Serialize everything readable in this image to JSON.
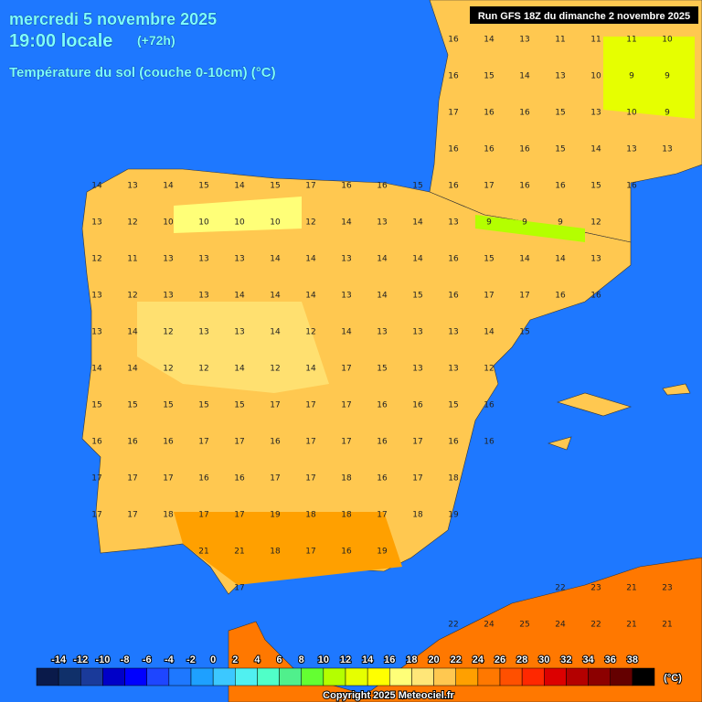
{
  "header": {
    "date": "mercredi 5 novembre 2025",
    "time": "19:00 locale",
    "lead": "(+72h)",
    "variable": "Température du sol (couche 0-10cm) (°C)",
    "run": "Run GFS 18Z du dimanche 2 novembre 2025"
  },
  "grid": {
    "rows": [
      [
        null,
        null,
        null,
        null,
        null,
        null,
        null,
        null,
        null,
        null,
        null,
        null,
        16,
        14,
        13,
        11,
        11,
        11,
        10
      ],
      [
        null,
        null,
        null,
        null,
        null,
        null,
        null,
        null,
        null,
        null,
        null,
        null,
        16,
        15,
        14,
        13,
        10,
        9,
        9
      ],
      [
        null,
        null,
        null,
        null,
        null,
        null,
        null,
        null,
        null,
        null,
        null,
        null,
        17,
        16,
        16,
        15,
        13,
        10,
        9
      ],
      [
        null,
        null,
        null,
        null,
        null,
        null,
        null,
        null,
        null,
        null,
        null,
        null,
        16,
        16,
        16,
        15,
        14,
        13,
        13
      ],
      [
        null,
        null,
        14,
        13,
        14,
        15,
        14,
        15,
        17,
        16,
        16,
        15,
        16,
        17,
        16,
        16,
        15,
        16,
        null
      ],
      [
        null,
        null,
        13,
        12,
        10,
        10,
        10,
        10,
        12,
        14,
        13,
        14,
        13,
        9,
        9,
        9,
        12,
        null,
        null
      ],
      [
        null,
        null,
        12,
        11,
        13,
        13,
        13,
        14,
        14,
        13,
        14,
        14,
        16,
        15,
        14,
        14,
        13,
        null,
        null
      ],
      [
        null,
        null,
        13,
        12,
        13,
        13,
        14,
        14,
        14,
        13,
        14,
        15,
        16,
        17,
        17,
        16,
        16,
        null,
        null
      ],
      [
        null,
        null,
        13,
        14,
        12,
        13,
        13,
        14,
        12,
        14,
        13,
        13,
        13,
        14,
        15,
        null,
        null,
        null,
        null
      ],
      [
        null,
        null,
        14,
        14,
        12,
        12,
        14,
        12,
        14,
        17,
        15,
        13,
        13,
        12,
        null,
        null,
        null,
        null,
        null
      ],
      [
        null,
        null,
        15,
        15,
        15,
        15,
        15,
        17,
        17,
        17,
        16,
        16,
        15,
        16,
        null,
        null,
        null,
        null,
        null
      ],
      [
        null,
        null,
        16,
        16,
        16,
        17,
        17,
        16,
        17,
        17,
        16,
        17,
        16,
        16,
        null,
        null,
        null,
        null,
        null
      ],
      [
        null,
        null,
        17,
        17,
        17,
        16,
        16,
        17,
        17,
        18,
        16,
        17,
        18,
        null,
        null,
        null,
        null,
        null,
        null
      ],
      [
        null,
        null,
        17,
        17,
        18,
        17,
        17,
        19,
        18,
        18,
        17,
        18,
        19,
        null,
        null,
        null,
        null,
        null,
        null
      ],
      [
        null,
        null,
        null,
        null,
        null,
        21,
        21,
        18,
        17,
        16,
        19,
        null,
        null,
        null,
        null,
        null,
        null,
        null,
        null
      ],
      [
        null,
        null,
        null,
        null,
        null,
        null,
        17,
        null,
        null,
        null,
        null,
        null,
        null,
        null,
        null,
        22,
        23,
        21,
        23
      ],
      [
        null,
        null,
        null,
        null,
        null,
        null,
        null,
        null,
        null,
        null,
        null,
        null,
        22,
        24,
        25,
        24,
        22,
        21,
        21
      ]
    ]
  },
  "legend": {
    "labels": [
      -14,
      -12,
      -10,
      -8,
      -6,
      -4,
      -2,
      0,
      2,
      4,
      6,
      8,
      10,
      12,
      14,
      16,
      18,
      20,
      22,
      24,
      26,
      28,
      30,
      32,
      34,
      36,
      38
    ],
    "unit": "(°C)",
    "colors": [
      "#0a1a4a",
      "#10306a",
      "#1a3a9a",
      "#0000c8",
      "#0000ff",
      "#1e46ff",
      "#1e78ff",
      "#1ea0ff",
      "#3cc8ff",
      "#50f0f0",
      "#50ffc8",
      "#50f08c",
      "#64ff32",
      "#b4ff00",
      "#e6ff00",
      "#ffff00",
      "#ffff78",
      "#ffe678",
      "#ffc850",
      "#ffa000",
      "#ff7800",
      "#ff5000",
      "#ff2800",
      "#dc0000",
      "#b40000",
      "#8c0000",
      "#640000",
      "#000000"
    ]
  },
  "footer": {
    "copyright": "Copyright 2025 Meteociel.fr"
  }
}
